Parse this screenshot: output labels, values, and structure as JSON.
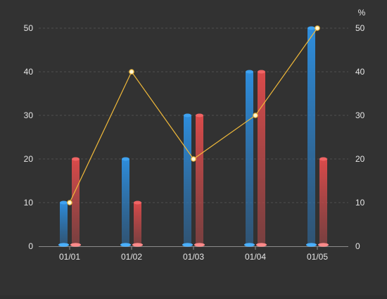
{
  "chart_data": {
    "type": "bar",
    "categories": [
      "01/01",
      "01/02",
      "01/03",
      "01/04",
      "01/05"
    ],
    "series": [
      {
        "kind": "bar",
        "axis": "left",
        "values": [
          10,
          20,
          30,
          40,
          50
        ],
        "color": "#2e8ddc",
        "cap_color": "#3fa2f0",
        "base_color": "#4ab0ff"
      },
      {
        "kind": "bar",
        "axis": "left",
        "values": [
          20,
          10,
          30,
          40,
          20
        ],
        "color": "#d94a4a",
        "cap_color": "#f06464",
        "base_color": "#ff8a8a"
      },
      {
        "kind": "line",
        "axis": "right",
        "values": [
          10,
          40,
          20,
          30,
          50
        ],
        "color": "#f0b93a",
        "marker_color": "#fff6d8"
      }
    ],
    "y_left": {
      "ticks": [
        0,
        10,
        20,
        30,
        40,
        50
      ],
      "ylim": [
        0,
        50
      ]
    },
    "y_right": {
      "unit": "%",
      "ticks": [
        0,
        10,
        20,
        30,
        40,
        50
      ],
      "ylim": [
        0,
        50
      ]
    },
    "grid": true,
    "grid_style": "dashed",
    "colors": {
      "background": "#323232",
      "text": "#e6e6e6",
      "grid": "#4d4d4d",
      "axis": "#8a8a8a"
    }
  }
}
